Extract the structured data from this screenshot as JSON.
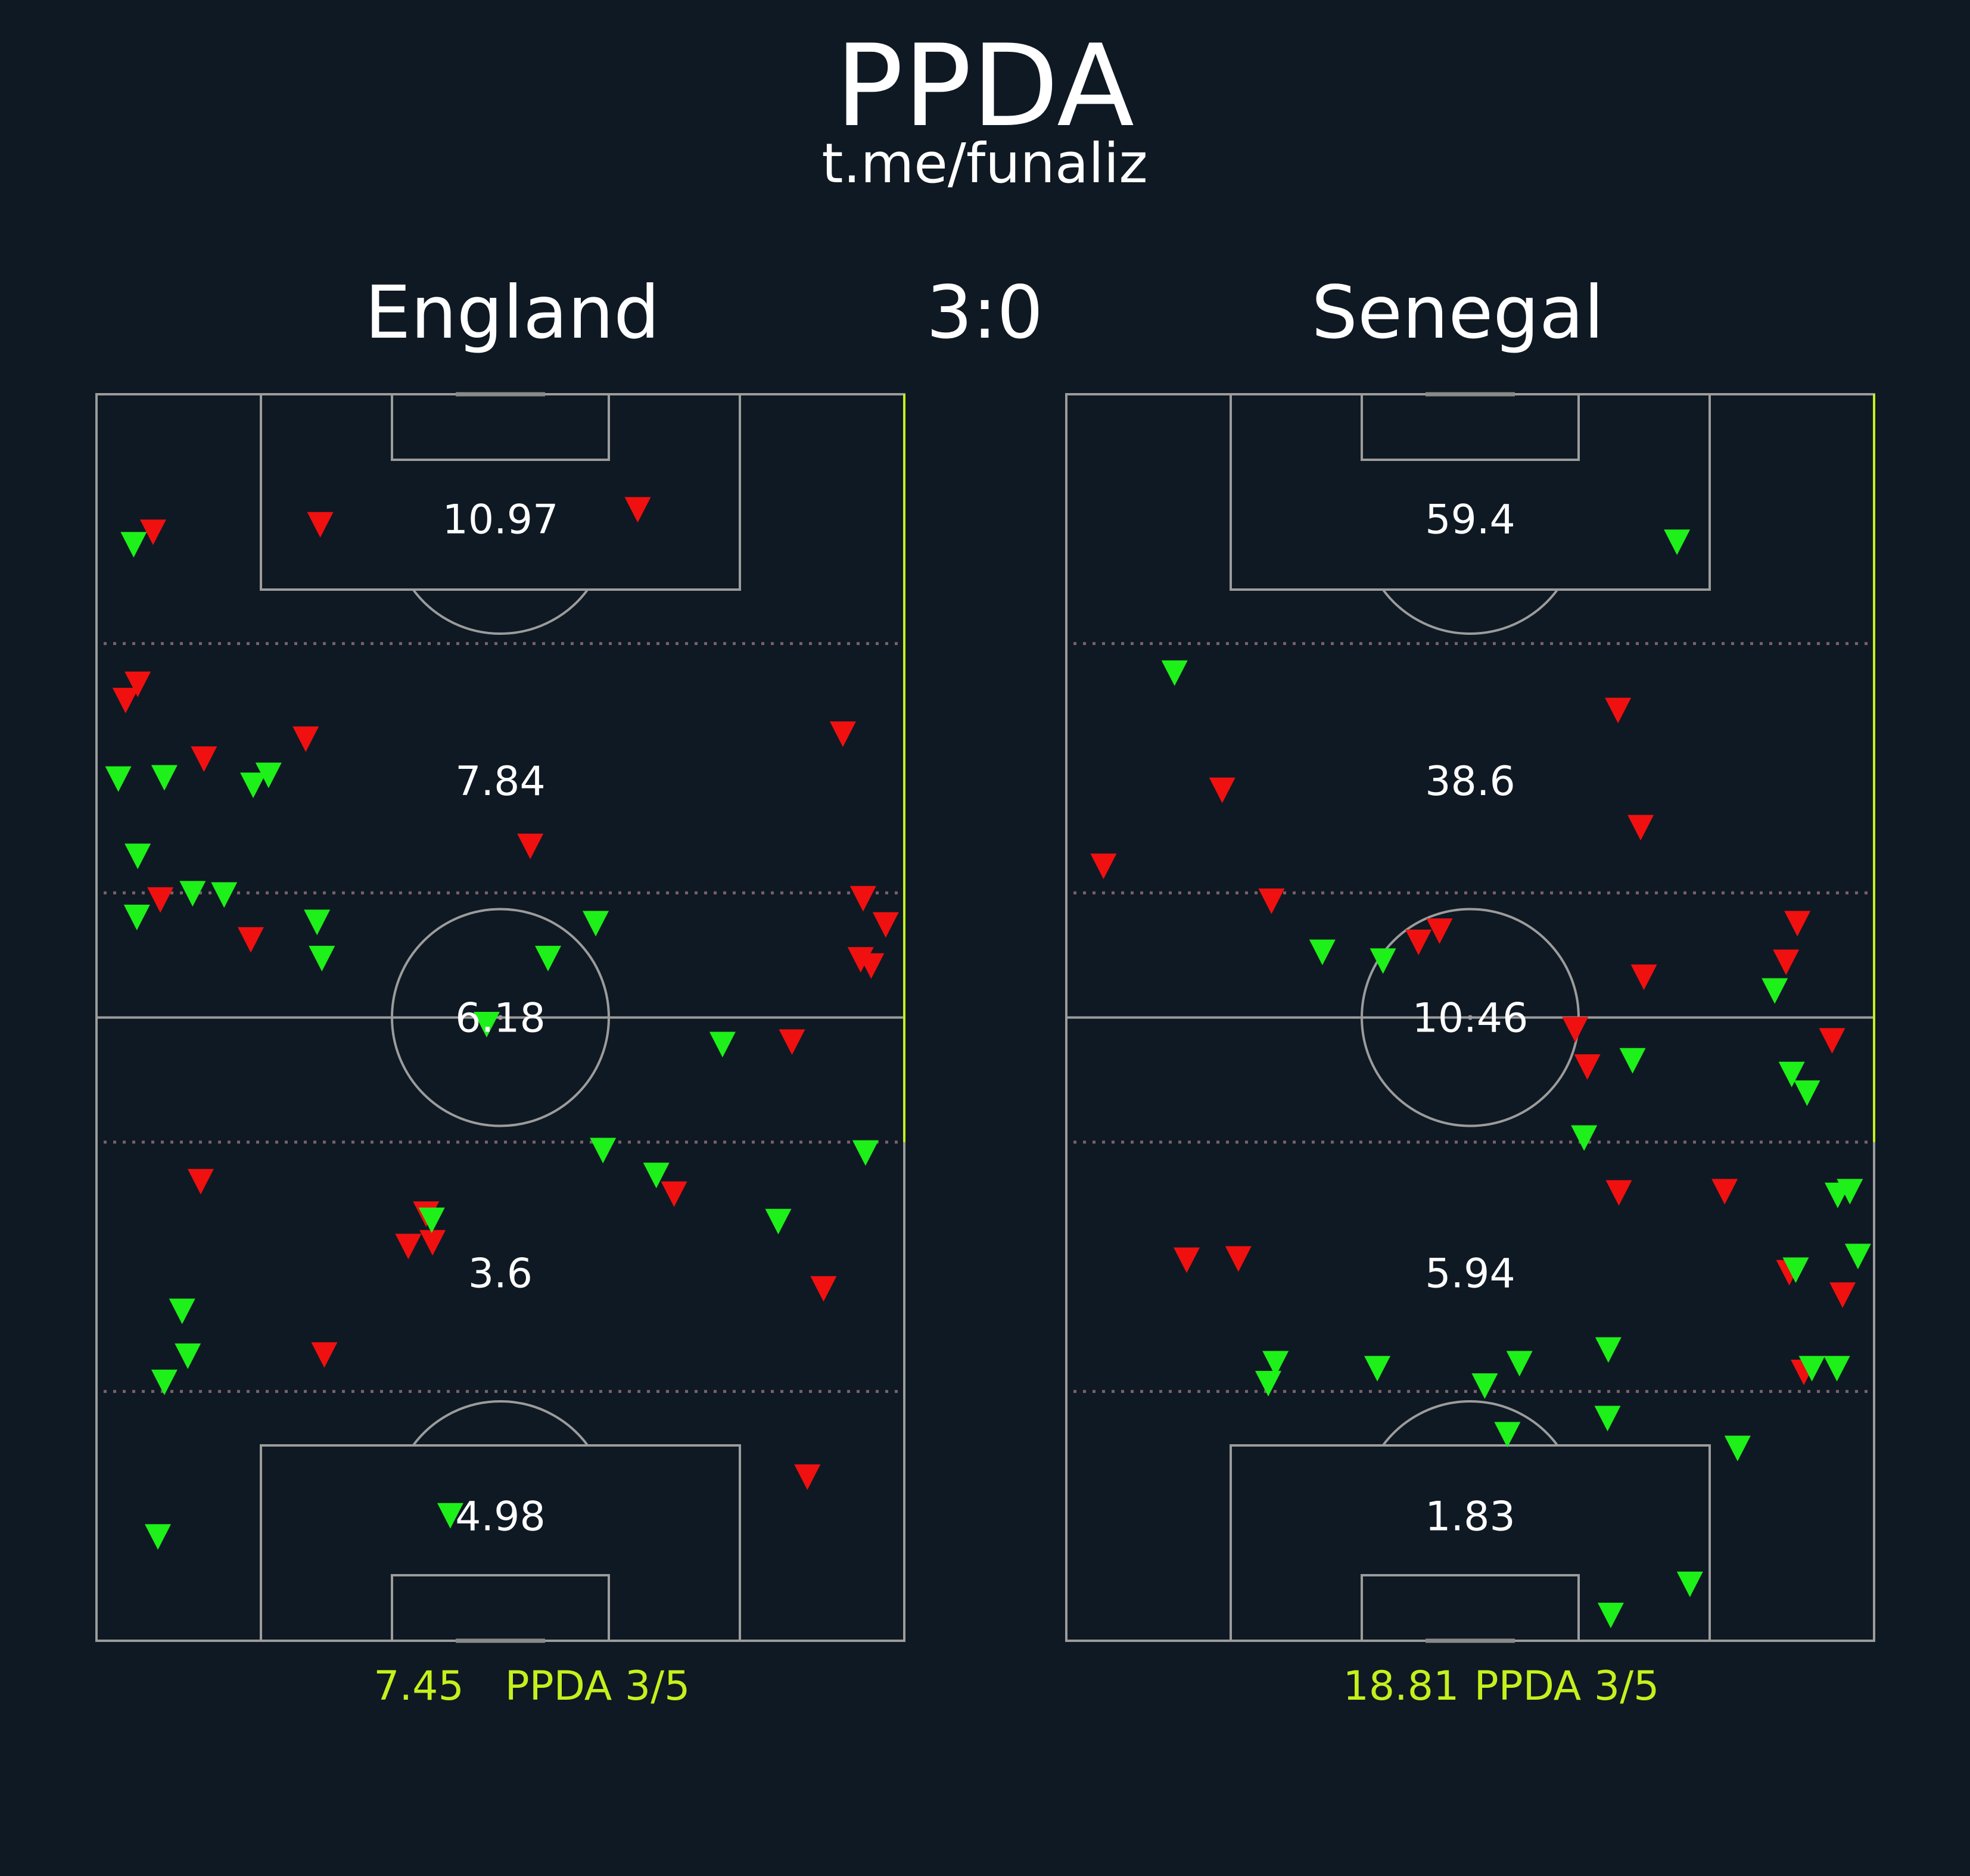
{
  "title": "PPDA",
  "subtitle": "t.me/funaliz",
  "score": "3:0",
  "colors": {
    "background": "#0f1923",
    "accent": "#c6f01c",
    "success_marker": "#1ef01a",
    "fail_marker": "#f01010",
    "pitch_lines": "#9c9c9c",
    "zone_lines": "#7a6068"
  },
  "chart_data": {
    "type": "scatter",
    "legend": "none",
    "teams": [
      {
        "name": "England",
        "zones": [
          {
            "value": "10.97"
          },
          {
            "value": "7.84"
          },
          {
            "value": "6.18"
          },
          {
            "value": "3.6"
          },
          {
            "value": "4.98"
          }
        ],
        "footer_value": "7.45",
        "footer_label": "PPDA 3/5",
        "events_green": [
          [
            4.6,
            87.9
          ],
          [
            2.7,
            69.1
          ],
          [
            8.4,
            69.2
          ],
          [
            19.4,
            68.6
          ],
          [
            21.3,
            69.4
          ],
          [
            5.1,
            62.9
          ],
          [
            11.9,
            59.9
          ],
          [
            15.8,
            59.8
          ],
          [
            5.0,
            58.0
          ],
          [
            27.3,
            57.6
          ],
          [
            27.9,
            54.7
          ],
          [
            61.8,
            57.5
          ],
          [
            55.9,
            54.7
          ],
          [
            48.3,
            49.4
          ],
          [
            77.5,
            47.8
          ],
          [
            62.7,
            39.3
          ],
          [
            69.3,
            37.3
          ],
          [
            95.2,
            39.1
          ],
          [
            41.5,
            33.7
          ],
          [
            84.4,
            33.6
          ],
          [
            10.6,
            26.4
          ],
          [
            11.3,
            22.8
          ],
          [
            8.4,
            20.7
          ],
          [
            43.8,
            10.0
          ],
          [
            7.6,
            8.3
          ]
        ],
        "events_red": [
          [
            7.0,
            88.9
          ],
          [
            27.7,
            89.5
          ],
          [
            67.0,
            90.7
          ],
          [
            5.1,
            76.7
          ],
          [
            3.6,
            75.4
          ],
          [
            25.9,
            72.3
          ],
          [
            13.3,
            70.7
          ],
          [
            92.4,
            72.7
          ],
          [
            53.7,
            63.7
          ],
          [
            94.9,
            59.5
          ],
          [
            7.9,
            59.4
          ],
          [
            19.1,
            56.2
          ],
          [
            97.7,
            57.4
          ],
          [
            94.6,
            54.6
          ],
          [
            95.9,
            54.1
          ],
          [
            86.1,
            48.0
          ],
          [
            12.9,
            36.8
          ],
          [
            71.5,
            35.8
          ],
          [
            40.8,
            34.2
          ],
          [
            38.6,
            31.6
          ],
          [
            41.6,
            31.9
          ],
          [
            90.0,
            28.2
          ],
          [
            28.2,
            22.9
          ],
          [
            88.0,
            13.1
          ]
        ]
      },
      {
        "name": "Senegal",
        "zones": [
          {
            "value": "59.4"
          },
          {
            "value": "38.6"
          },
          {
            "value": "10.46"
          },
          {
            "value": "5.94"
          },
          {
            "value": "1.83"
          }
        ],
        "footer_value": "18.81",
        "footer_label": "PPDA 3/5",
        "events_green": [
          [
            75.6,
            88.1
          ],
          [
            13.4,
            77.6
          ],
          [
            31.7,
            55.2
          ],
          [
            39.2,
            54.5
          ],
          [
            87.7,
            52.1
          ],
          [
            70.1,
            46.5
          ],
          [
            89.8,
            45.4
          ],
          [
            91.7,
            43.9
          ],
          [
            64.1,
            40.3
          ],
          [
            95.5,
            35.7
          ],
          [
            97.0,
            36.0
          ],
          [
            98.0,
            30.8
          ],
          [
            90.3,
            29.7
          ],
          [
            25.9,
            22.2
          ],
          [
            25.0,
            20.6
          ],
          [
            38.5,
            21.8
          ],
          [
            56.1,
            22.2
          ],
          [
            67.1,
            23.3
          ],
          [
            51.8,
            20.4
          ],
          [
            54.6,
            16.5
          ],
          [
            67.0,
            17.8
          ],
          [
            83.1,
            15.4
          ],
          [
            92.3,
            21.8
          ],
          [
            95.4,
            21.8
          ],
          [
            77.2,
            4.5
          ],
          [
            67.4,
            2.0
          ]
        ],
        "events_red": [
          [
            68.3,
            74.6
          ],
          [
            19.3,
            68.2
          ],
          [
            71.1,
            65.2
          ],
          [
            4.6,
            62.1
          ],
          [
            25.4,
            59.3
          ],
          [
            43.6,
            56.0
          ],
          [
            46.2,
            56.9
          ],
          [
            90.5,
            57.5
          ],
          [
            71.5,
            53.2
          ],
          [
            89.1,
            54.4
          ],
          [
            63.0,
            49.0
          ],
          [
            94.8,
            48.1
          ],
          [
            64.5,
            46.0
          ],
          [
            68.4,
            35.9
          ],
          [
            81.5,
            36.0
          ],
          [
            14.9,
            30.5
          ],
          [
            21.3,
            30.6
          ],
          [
            89.5,
            29.5
          ],
          [
            96.1,
            27.7
          ],
          [
            91.3,
            21.5
          ]
        ]
      }
    ]
  }
}
